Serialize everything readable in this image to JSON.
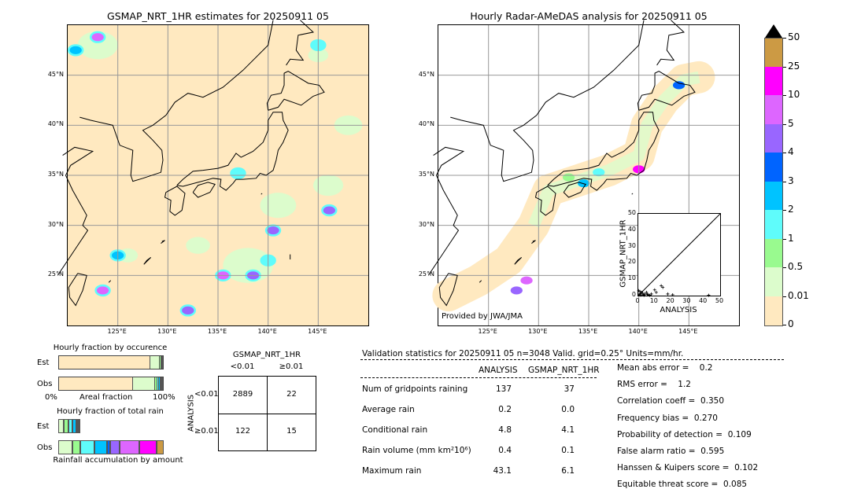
{
  "left_map": {
    "title": "GSMAP_NRT_1HR estimates for 20250911 05",
    "lon_labels": [
      "125°E",
      "130°E",
      "135°E",
      "140°E",
      "145°E"
    ],
    "lat_labels": [
      "45°N",
      "40°N",
      "35°N",
      "30°N",
      "25°N"
    ]
  },
  "right_map": {
    "title": "Hourly Radar-AMeDAS analysis for 20250911 05",
    "lon_labels": [
      "125°E",
      "130°E",
      "135°E",
      "140°E",
      "145°E"
    ],
    "lat_labels": [
      "45°N",
      "40°N",
      "35°N",
      "30°N",
      "25°N"
    ],
    "credit": "Provided by JWA/JMA",
    "inset": {
      "xlabel": "ANALYSIS",
      "ylabel": "GSMAP_NRT_1HR",
      "ticks": [
        "0",
        "10",
        "20",
        "30",
        "40",
        "50"
      ]
    }
  },
  "colorbar": {
    "labels": [
      "50",
      "25",
      "10",
      "5",
      "4",
      "3",
      "2",
      "1",
      "0.5",
      "0.01",
      "0"
    ],
    "colors": [
      "#cc9a44",
      "#ff00ff",
      "#dd66ff",
      "#9966ff",
      "#0064ff",
      "#00c3ff",
      "#5ffcfb",
      "#99fa8f",
      "#dcfccc",
      "#ffe9c0"
    ],
    "extend_color": "#000000"
  },
  "occurrence": {
    "title": "Hourly fraction by occurence",
    "est_label": "Est",
    "obs_label": "Obs",
    "xmin_label": "0%",
    "xlabel": "Areal fraction",
    "xmax_label": "100%",
    "est_fractions": [
      87.5,
      9.5,
      1.2,
      0.8,
      0.5,
      0.5
    ],
    "obs_fractions": [
      71.5,
      21,
      2.5,
      1.5,
      1.2,
      0.8,
      0.8,
      0.7
    ]
  },
  "total_rain": {
    "title": "Hourly fraction of total rain",
    "est_label": "Est",
    "obs_label": "Obs",
    "xlabel": "Rainfall accumulation by amount",
    "est_fractions": [
      5.5,
      4,
      4,
      3.5,
      1.5,
      1.2,
      0.8
    ],
    "obs_fractions": [
      13.5,
      7.5,
      13.5,
      11.5,
      3,
      9,
      19,
      16.5,
      6.5
    ]
  },
  "contingency": {
    "col_title": "GSMAP_NRT_1HR",
    "col_labels": [
      "<0.01",
      "≥0.01"
    ],
    "row_title": "ANALYSIS",
    "row_labels": [
      "<0.01",
      "≥0.01"
    ],
    "cells": [
      [
        "2889",
        "22"
      ],
      [
        "122",
        "15"
      ]
    ]
  },
  "validation": {
    "header": "Validation statistics for 20250911 05  n=3048 Valid. grid=0.25° Units=mm/hr.",
    "col_analysis": "ANALYSIS",
    "col_gsmap": "GSMAP_NRT_1HR",
    "rows": [
      {
        "label": "Num of gridpoints raining",
        "analysis": "137",
        "gsmap": "37"
      },
      {
        "label": "Average rain",
        "analysis": "0.2",
        "gsmap": "0.0"
      },
      {
        "label": "Conditional rain",
        "analysis": "4.8",
        "gsmap": "4.1"
      },
      {
        "label": "Rain volume (mm km²10⁶)",
        "analysis": "0.4",
        "gsmap": "0.1"
      },
      {
        "label": "Maximum rain",
        "analysis": "43.1",
        "gsmap": "6.1"
      }
    ],
    "scores": [
      "Mean abs error =    0.2",
      "RMS error =    1.2",
      "Correlation coeff =  0.350",
      "Frequency bias =  0.270",
      "Probability of detection =  0.109",
      "False alarm ratio =  0.595",
      "Hanssen & Kuipers score =  0.102",
      "Equitable threat score =  0.085"
    ]
  }
}
